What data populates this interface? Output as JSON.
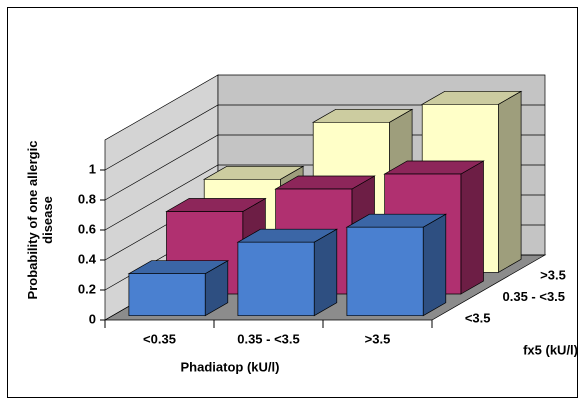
{
  "chart_data": {
    "type": "bar3d",
    "y_label": "Probability of one allergic disease",
    "x_label": "Phadiatop (kU/l)",
    "z_label": "fx5 (kU/l)",
    "categories": [
      "<0.35",
      "0.35 - <3.5",
      ">3.5"
    ],
    "series": [
      {
        "name": "<3.5",
        "color": "#4a80d0",
        "values": [
          0.28,
          0.49,
          0.59
        ]
      },
      {
        "name": "0.35 - <3.5",
        "color": "#b03070",
        "values": [
          0.55,
          0.7,
          0.8
        ]
      },
      {
        "name": ">3.5",
        "color": "#ffffc8",
        "values": [
          0.62,
          1.0,
          1.12
        ]
      }
    ],
    "ylim": [
      0,
      1.2
    ],
    "yticks": [
      0,
      0.2,
      0.4,
      0.6,
      0.8,
      1
    ],
    "grid": true
  }
}
